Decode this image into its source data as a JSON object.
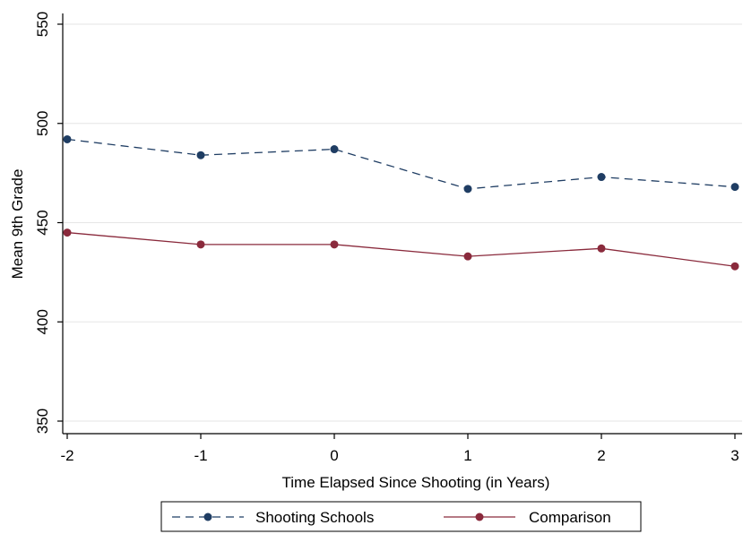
{
  "chart_data": {
    "type": "line",
    "title": "",
    "xlabel": "Time Elapsed Since Shooting (in Years)",
    "ylabel": "Mean 9th Grade",
    "x": [
      -2,
      -1,
      0,
      1,
      2,
      3
    ],
    "x_tick_labels": [
      "-2",
      "-1",
      "0",
      "1",
      "2",
      "3"
    ],
    "y_ticks": [
      350,
      400,
      450,
      500,
      550
    ],
    "y_tick_labels": [
      "350",
      "400",
      "450",
      "500",
      "550"
    ],
    "xlim": [
      -2,
      3
    ],
    "ylim": [
      345,
      555
    ],
    "grid": true,
    "legend_position": "bottom",
    "series": [
      {
        "name": "Shooting Schools",
        "values": [
          492,
          484,
          487,
          467,
          473,
          468
        ],
        "color": "#1f3d63",
        "line_style": "dashed",
        "marker": "circle"
      },
      {
        "name": "Comparison",
        "values": [
          445,
          439,
          439,
          433,
          437,
          428
        ],
        "color": "#8a2a3c",
        "line_style": "solid",
        "marker": "circle"
      }
    ]
  }
}
